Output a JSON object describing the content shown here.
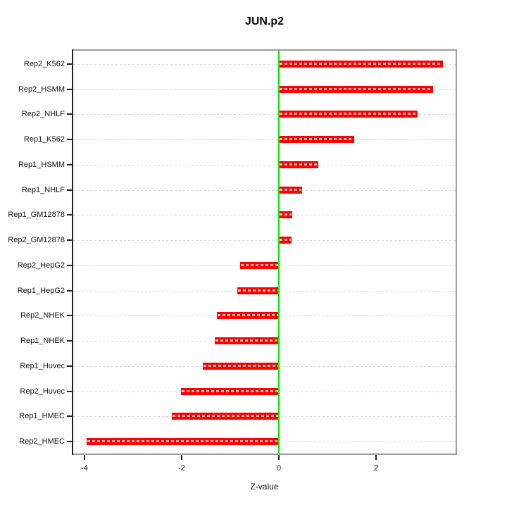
{
  "title": "JUN.p2",
  "xlabel": "Z-value",
  "chart_data": {
    "type": "bar",
    "orientation": "horizontal",
    "title": "JUN.p2",
    "xlabel": "Z-value",
    "categories": [
      "Rep2_K562",
      "Rep2_HSMM",
      "Rep2_NHLF",
      "Rep1_K562",
      "Rep1_HSMM",
      "Rep1_NHLF",
      "Rep1_GM12878",
      "Rep2_GM12878",
      "Rep2_HepG2",
      "Rep1_HepG2",
      "Rep2_NHEK",
      "Rep1_NHEK",
      "Rep1_Huvec",
      "Rep2_Huvec",
      "Rep1_HMEC",
      "Rep2_HMEC"
    ],
    "values": [
      3.37,
      3.17,
      2.85,
      1.55,
      0.81,
      0.48,
      0.28,
      0.26,
      -0.79,
      -0.86,
      -1.27,
      -1.32,
      -1.56,
      -2.02,
      -2.2,
      -3.95
    ],
    "x_ticks": [
      -4,
      -2,
      0,
      2
    ],
    "x_tick_labels": [
      "-4",
      "-2",
      "0",
      "2"
    ],
    "xlim": [
      -4.25,
      3.65
    ],
    "zero_line_x": 0,
    "grid": "dotted horizontal line per category",
    "legend": "none",
    "colors": {
      "bar": "#ff0000",
      "bar_dash_overlay": "rgba(255,255,255,0.72)",
      "zero_line": "#00ee00",
      "grid": "#d8d8d8",
      "box": "#9d9d9d",
      "axis": "#222222",
      "text": "#000000"
    }
  }
}
